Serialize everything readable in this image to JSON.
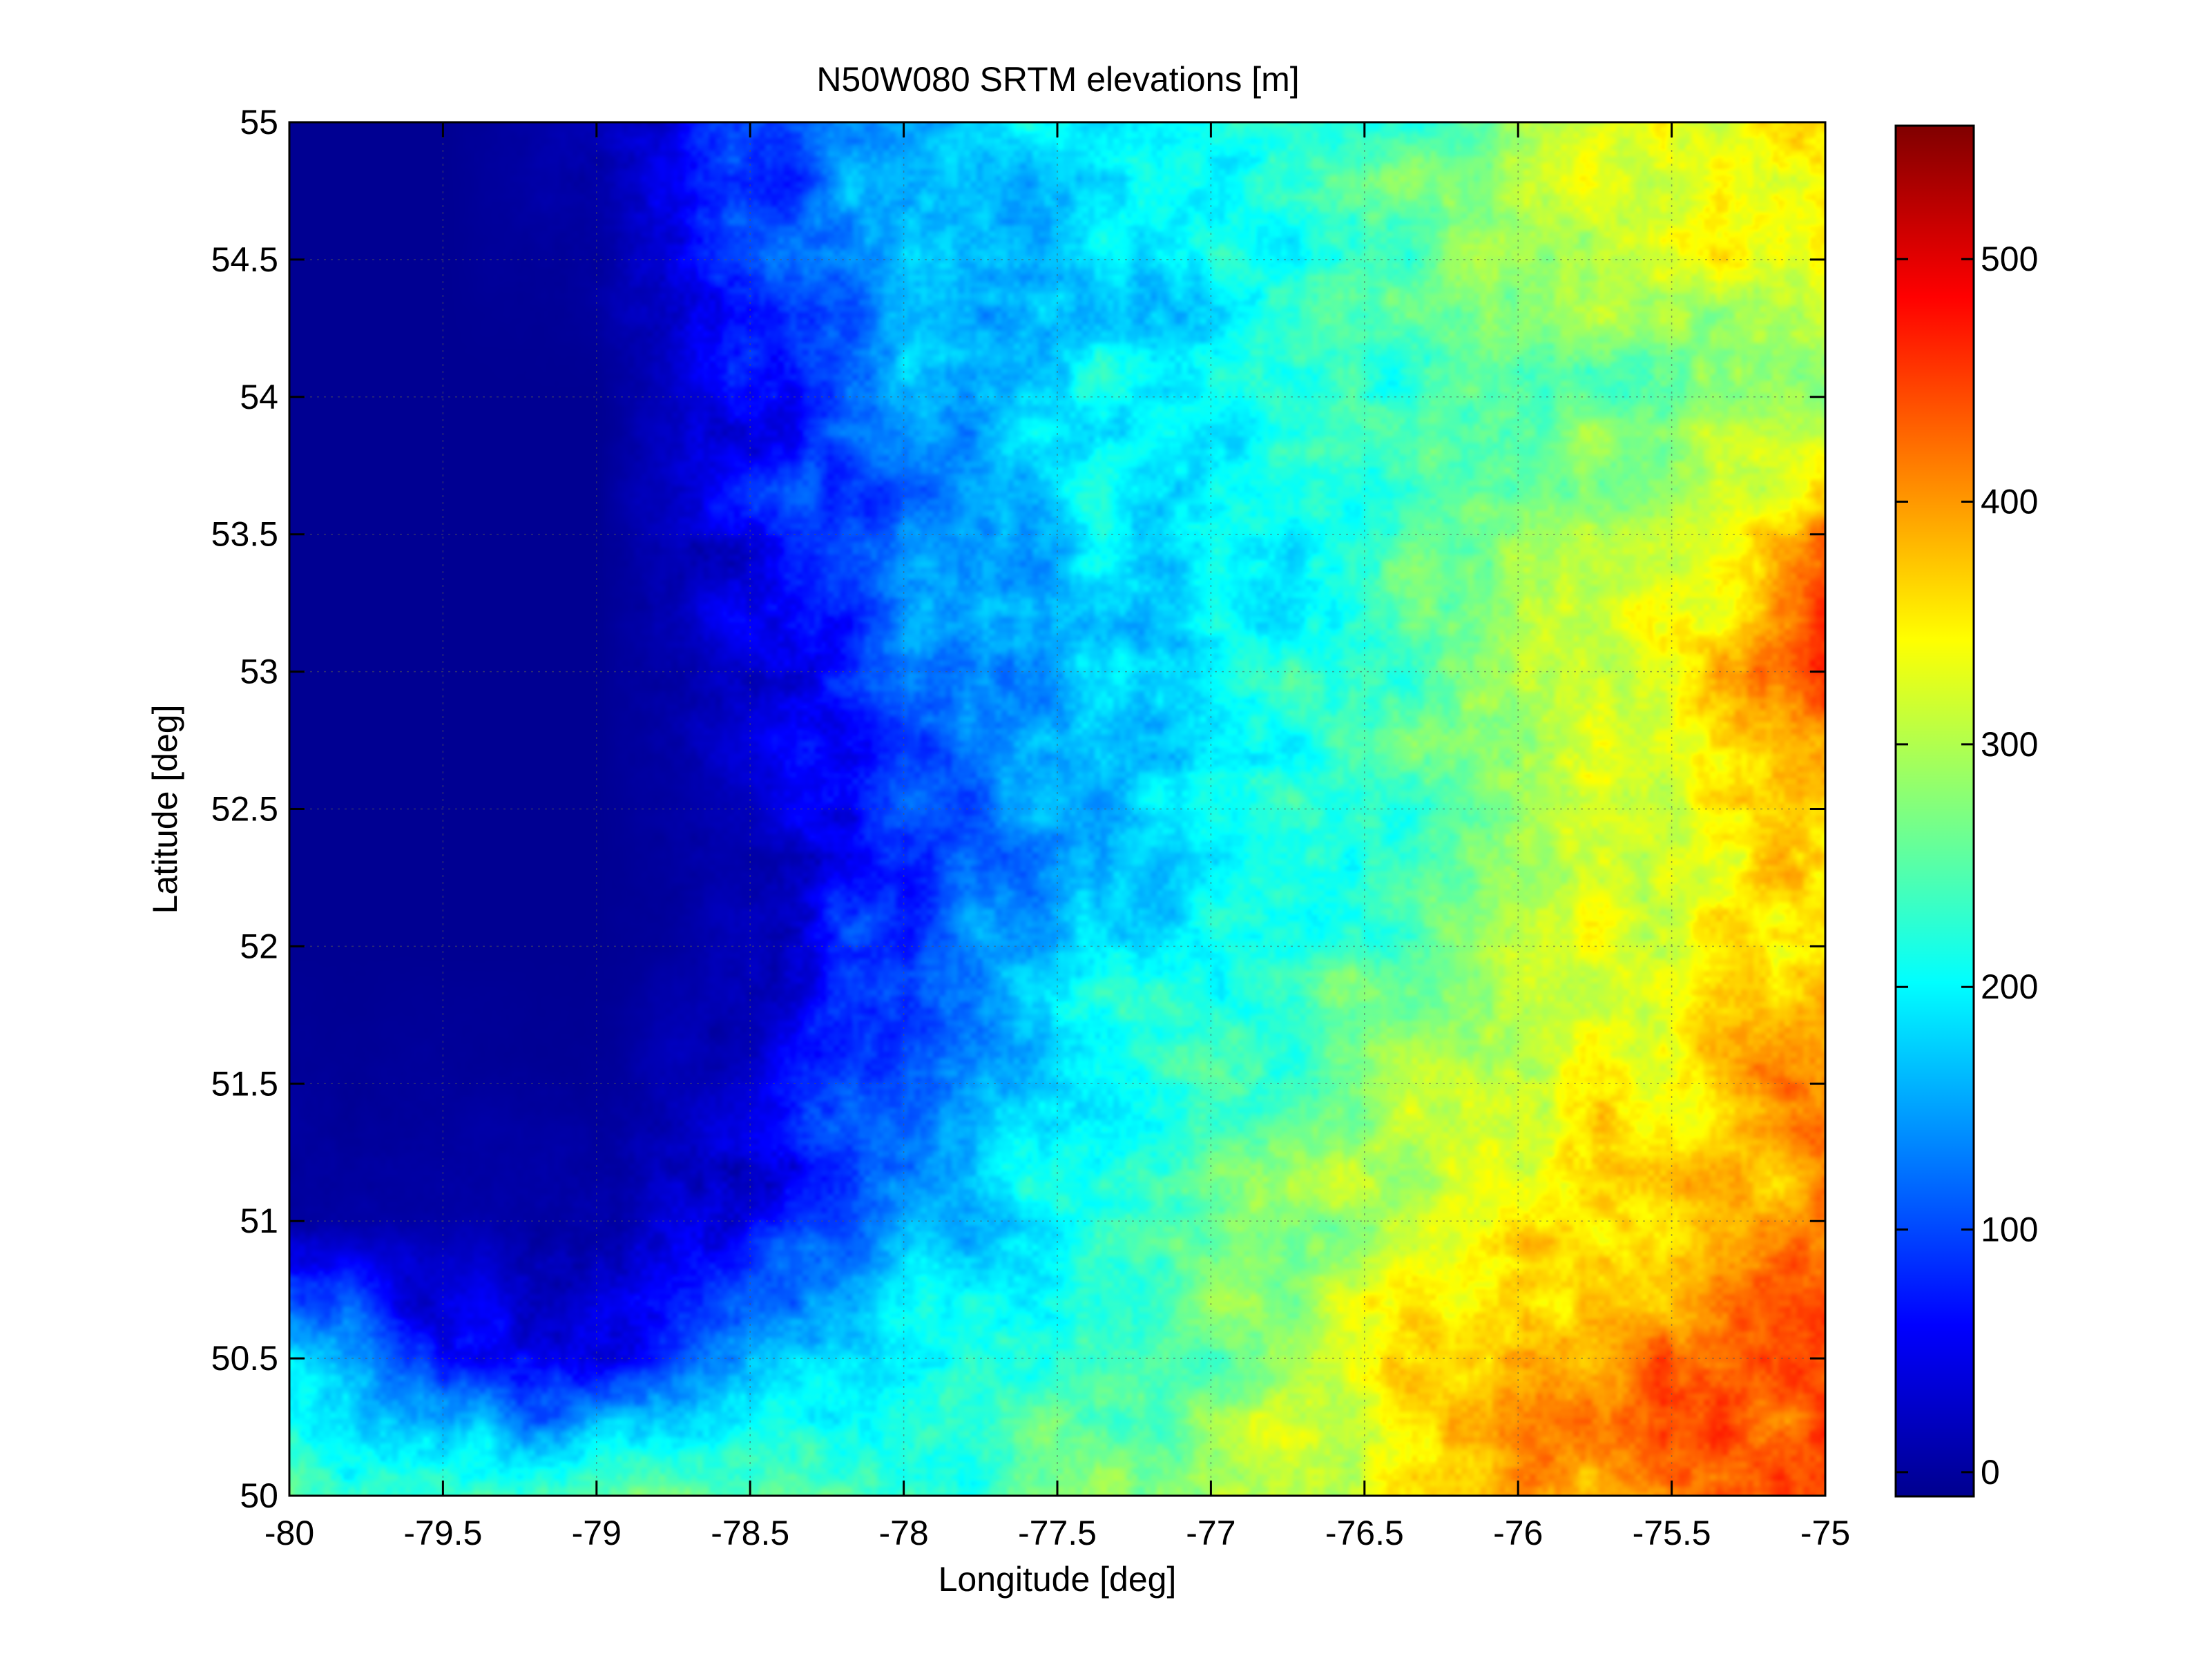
{
  "chart_data": {
    "type": "heatmap",
    "title": "N50W080 SRTM elevations [m]",
    "xlabel": "Longitude [deg]",
    "ylabel": "Latitude [deg]",
    "xlim": [
      -80,
      -75
    ],
    "ylim": [
      50,
      55
    ],
    "x_ticks": [
      -80,
      -79.5,
      -79,
      -78.5,
      -78,
      -77.5,
      -77,
      -76.5,
      -76,
      -75.5,
      -75
    ],
    "y_ticks": [
      50,
      50.5,
      51,
      51.5,
      52,
      52.5,
      53,
      53.5,
      54,
      54.5,
      55
    ],
    "x_tick_labels": [
      "-80",
      "-79.5",
      "-79",
      "-78.5",
      "-78",
      "-77.5",
      "-77",
      "-76.5",
      "-76",
      "-75.5",
      "-75"
    ],
    "y_tick_labels": [
      "50",
      "50.5",
      "51",
      "51.5",
      "52",
      "52.5",
      "53",
      "53.5",
      "54",
      "54.5",
      "55"
    ],
    "grid": true,
    "colormap": "jet",
    "clim": [
      -10,
      555
    ],
    "colorbar": {
      "ticks": [
        0,
        100,
        200,
        300,
        400,
        500
      ],
      "tick_labels": [
        "0",
        "100",
        "200",
        "300",
        "400",
        "500"
      ]
    },
    "approx_elevation_grid": {
      "lat_rows_north_to_south": [
        55,
        54.5,
        54,
        53.5,
        53,
        52.5,
        52,
        51.5,
        51,
        50.5,
        50
      ],
      "lon_cols_west_to_east": [
        -80,
        -79.5,
        -79,
        -78.5,
        -78,
        -77.5,
        -77,
        -76.5,
        -76,
        -75.5,
        -75
      ],
      "values_m": [
        [
          0,
          0,
          20,
          80,
          160,
          200,
          215,
          235,
          290,
          330,
          350
        ],
        [
          0,
          0,
          10,
          90,
          150,
          180,
          200,
          230,
          290,
          330,
          340
        ],
        [
          0,
          0,
          0,
          60,
          150,
          185,
          195,
          220,
          255,
          270,
          280
        ],
        [
          0,
          0,
          0,
          60,
          130,
          175,
          195,
          220,
          290,
          330,
          420
        ],
        [
          0,
          0,
          0,
          40,
          110,
          160,
          200,
          230,
          300,
          340,
          450
        ],
        [
          0,
          0,
          0,
          20,
          100,
          150,
          200,
          230,
          280,
          320,
          360
        ],
        [
          0,
          0,
          0,
          20,
          100,
          170,
          210,
          240,
          290,
          340,
          360
        ],
        [
          5,
          5,
          5,
          30,
          120,
          190,
          235,
          270,
          330,
          350,
          420
        ],
        [
          10,
          10,
          20,
          70,
          150,
          210,
          250,
          300,
          340,
          370,
          420
        ],
        [
          160,
          60,
          60,
          150,
          200,
          240,
          270,
          330,
          390,
          410,
          450
        ],
        [
          250,
          245,
          250,
          240,
          235,
          255,
          280,
          330,
          380,
          430,
          460
        ]
      ]
    }
  }
}
